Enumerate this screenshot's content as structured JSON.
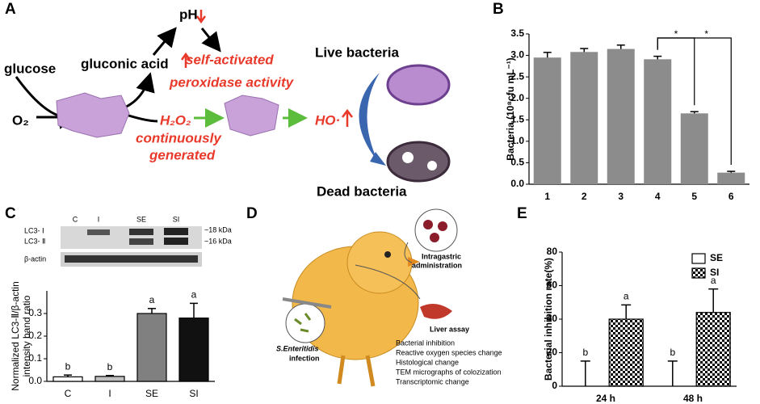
{
  "panel_labels": [
    "A",
    "B",
    "C",
    "D",
    "E"
  ],
  "diagram_a": {
    "glucose": "glucose",
    "gluconic_acid": "gluconic acid",
    "ph": "pH",
    "o2": "O₂",
    "self_activated": "self-activated",
    "peroxidase": "peroxidase activity",
    "h2o2": "H₂O₂",
    "continuously": "continuously",
    "generated": "generated",
    "ho": "HO·",
    "live": "Live bacteria",
    "dead": "Dead bacteria"
  },
  "diagram_d": {
    "intragastric": [
      "Intragastric",
      "administration"
    ],
    "liver": "Liver assay",
    "infection": [
      "S.Enteritidis",
      "infection"
    ],
    "assays": [
      "Bacterial inhibition",
      "Reactive oxygen species change",
      "Histological change",
      "TEM micrographs of colozization",
      "Transcriptomic change"
    ]
  },
  "blot": {
    "lanes": [
      "C",
      "I",
      "SE",
      "SI"
    ],
    "rows": [
      "LC3- Ⅰ",
      "LC3- Ⅱ",
      "β-actin"
    ],
    "sizes": [
      "~18 kDa",
      "~16 kDa"
    ]
  },
  "chart_data": [
    {
      "type": "bar",
      "ylabel": [
        "Bacteria (10⁸cfu mL⁻¹)"
      ],
      "categories": [
        "1",
        "2",
        "3",
        "4",
        "5",
        "6"
      ],
      "values": [
        2.95,
        3.08,
        3.15,
        2.91,
        1.65,
        0.27
      ],
      "errors": [
        0.12,
        0.08,
        0.09,
        0.07,
        0.04,
        0.03
      ],
      "color": "#8c8c8c",
      "significance_marks": [
        "*",
        "*"
      ],
      "ylim": [
        0,
        3.5
      ],
      "yticks": [
        {
          "value": 0,
          "label": "0.0"
        },
        0.5,
        {
          "value": 1,
          "label": "1.0"
        },
        1.5,
        {
          "value": 2,
          "label": "2.0"
        },
        2.5,
        {
          "value": 3,
          "label": "3.0"
        },
        3.5
      ]
    },
    {
      "type": "bar",
      "ylabel": [
        "Normalized LC3-Ⅱ/β-actin",
        "intensity band ratio"
      ],
      "categories": [
        "C",
        "I",
        "SE",
        "SI"
      ],
      "values": [
        0.02,
        0.022,
        0.3,
        0.28
      ],
      "errors": [
        0.008,
        0.004,
        0.022,
        0.065
      ],
      "colors": [
        "#ffffff",
        "#bfbfbf",
        "#808080",
        "#111111"
      ],
      "annotations": [
        "b",
        "b",
        "a",
        "a"
      ],
      "ylim": [
        0,
        0.4
      ],
      "yticks": [
        {
          "value": 0,
          "label": "0.0"
        },
        0.1,
        0.2,
        0.3
      ]
    },
    {
      "type": "bar",
      "ylabel": [
        "Bacterial inhibition rate(%)"
      ],
      "categories": [
        "24 h",
        "48 h"
      ],
      "series": [
        {
          "name": "SE",
          "color": "#ffffff",
          "values": [
            0,
            0
          ],
          "errors": [
            15,
            15
          ],
          "annotations": [
            "b",
            "b"
          ]
        },
        {
          "name": "SI",
          "color": "#000000",
          "pattern": "checker",
          "values": [
            40,
            44
          ],
          "errors": [
            8.5,
            14
          ],
          "annotations": [
            "a",
            "a"
          ]
        }
      ],
      "legend": "upper right",
      "ylim": [
        0,
        80
      ],
      "yticks": [
        0,
        20,
        40,
        60,
        80
      ]
    }
  ]
}
